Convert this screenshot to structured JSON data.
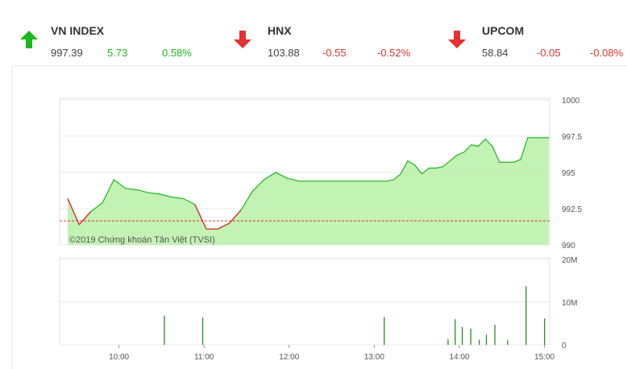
{
  "tickers": [
    {
      "name": "VN INDEX",
      "value": "997.39",
      "change": "5.73",
      "percent": "0.58%",
      "direction": "up",
      "color": "#1db81d"
    },
    {
      "name": "HNX",
      "value": "103.88",
      "change": "-0.55",
      "percent": "-0.52%",
      "direction": "down",
      "color": "#e53232"
    },
    {
      "name": "UPCOM",
      "value": "58.84",
      "change": "-0.05",
      "percent": "-0.08%",
      "direction": "down",
      "color": "#e53232"
    }
  ],
  "colors": {
    "up": "#1db81d",
    "down": "#e53232",
    "area_fill": "#b8f0a8",
    "volume_bar": "#2a8a2a"
  },
  "watermark": "©2019 Chứng khoán Tân Việt (TVSI)",
  "chart_data": [
    {
      "type": "area",
      "reference": 991.66,
      "ylim": [
        990,
        1000
      ],
      "yticks": [
        "1000",
        "997.5",
        "995",
        "992.5",
        "990"
      ],
      "x": [
        "09:15",
        "09:20",
        "09:25",
        "09:30",
        "09:35",
        "09:40",
        "09:45",
        "09:50",
        "09:55",
        "10:00",
        "10:05",
        "10:10",
        "10:15",
        "10:20",
        "10:25",
        "10:30",
        "10:35",
        "10:40",
        "10:45",
        "10:50",
        "10:55",
        "11:00",
        "11:05",
        "11:10",
        "11:15",
        "11:20",
        "11:25",
        "11:30",
        "13:00",
        "13:05",
        "13:10",
        "13:15",
        "13:20",
        "13:25",
        "13:30",
        "13:35",
        "13:40",
        "13:45",
        "13:50",
        "13:55",
        "14:00",
        "14:05",
        "14:10",
        "14:15",
        "14:20",
        "14:25",
        "14:30",
        "14:35",
        "14:40",
        "14:45",
        "15:00"
      ],
      "values": [
        993.2,
        991.4,
        992.3,
        992.9,
        994.5,
        993.9,
        993.8,
        993.6,
        993.5,
        993.3,
        993.2,
        992.8,
        991.1,
        991.1,
        991.5,
        992.4,
        993.7,
        994.5,
        995.0,
        994.6,
        994.4,
        994.4,
        994.4,
        994.4,
        994.4,
        994.4,
        994.4,
        994.4,
        994.4,
        994.4,
        994.5,
        994.9,
        995.8,
        995.5,
        994.9,
        995.3,
        995.3,
        995.4,
        995.8,
        996.2,
        996.4,
        996.9,
        996.8,
        997.3,
        996.8,
        995.7,
        995.7,
        995.7,
        995.9,
        997.4,
        997.39
      ]
    },
    {
      "type": "bar",
      "ylim": [
        0,
        20
      ],
      "yticks": [
        "20M",
        "10M",
        "0"
      ],
      "xticks": [
        "10:00",
        "11:00",
        "12:00",
        "13:00",
        "14:00",
        "15:00"
      ],
      "unit": "M",
      "x": [
        "10:32",
        "10:59",
        "13:07",
        "13:52",
        "13:57",
        "14:02",
        "14:08",
        "14:14",
        "14:19",
        "14:25",
        "14:34",
        "14:47",
        "15:00"
      ],
      "values": [
        6.8,
        6.4,
        6.5,
        1.3,
        6.0,
        4.2,
        3.8,
        1.2,
        2.4,
        4.7,
        1.1,
        13.7,
        6.2
      ]
    }
  ]
}
